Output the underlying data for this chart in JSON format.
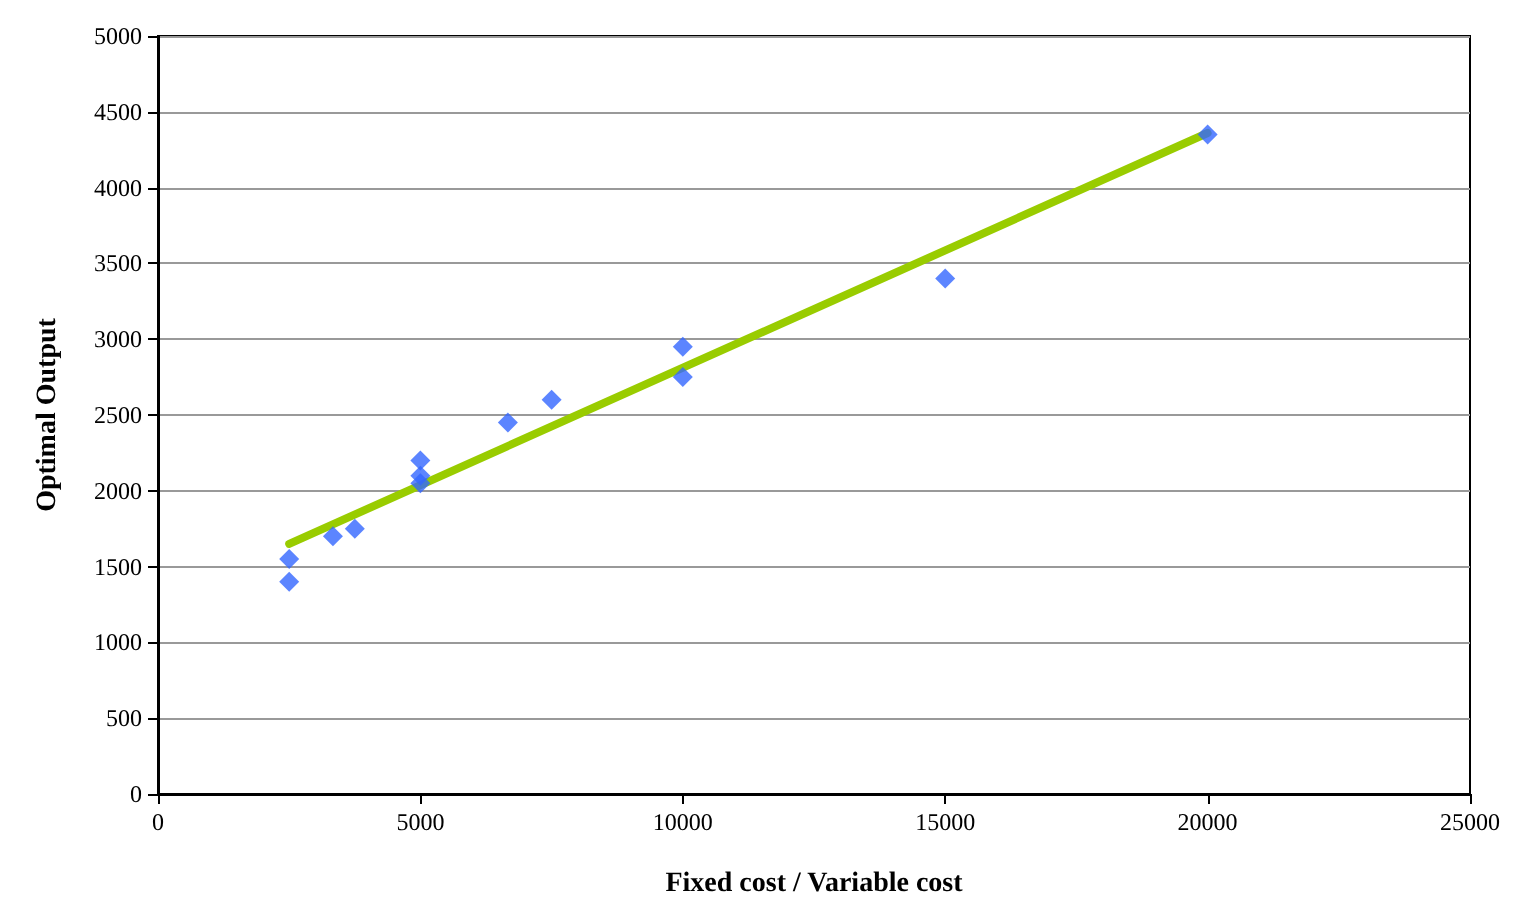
{
  "chart_data": {
    "type": "scatter",
    "xlabel": "Fixed cost / Variable cost",
    "ylabel": "Optimal Output",
    "series": [
      {
        "color": "#3366ff",
        "marker": "diamond",
        "x": [
          2500,
          2500,
          3333,
          3750,
          5000,
          5000,
          5000,
          6667,
          7500,
          10000,
          10000,
          15000,
          20000
        ],
        "values": [
          1550,
          1400,
          1700,
          1750,
          2200,
          2100,
          2050,
          2450,
          2600,
          2950,
          2750,
          3400,
          4350
        ]
      },
      {
        "type": "line",
        "color": "#99cc00",
        "marker": "none",
        "x": [
          2500,
          20000
        ],
        "values": [
          1650,
          4360
        ]
      }
    ],
    "xlim": [
      0,
      25000
    ],
    "xticks": [
      0,
      5000,
      10000,
      15000,
      20000,
      25000
    ],
    "ylim": [
      0,
      5000
    ],
    "yticks": [
      0,
      500,
      1000,
      1500,
      2000,
      2500,
      3000,
      3500,
      4000,
      4500,
      5000
    ],
    "grid": "y"
  }
}
